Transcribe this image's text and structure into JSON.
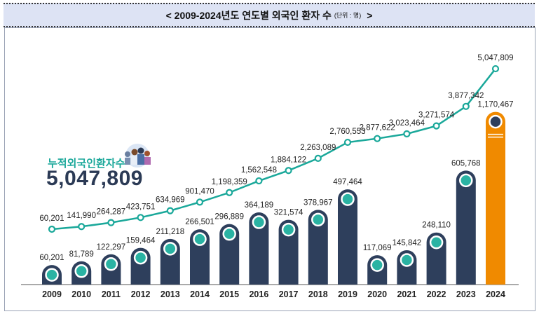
{
  "header": {
    "title": "< 2009-2024년도 연도별 외국인 환자 수",
    "unit": "(단위 : 명)",
    "close": ">"
  },
  "callout": {
    "label": "누적외국인환자수",
    "value": "5,047,809"
  },
  "colors": {
    "bar": "#2e3f5c",
    "bar_highlight": "#f08a00",
    "line": "#1aa89a",
    "dot": "#2ab3a3",
    "header_bg": "#dde3f4"
  },
  "chart_data": {
    "type": "bar+line",
    "categories": [
      "2009",
      "2010",
      "2011",
      "2012",
      "2013",
      "2014",
      "2015",
      "2016",
      "2017",
      "2018",
      "2019",
      "2020",
      "2021",
      "2022",
      "2023",
      "2024"
    ],
    "series": [
      {
        "type": "bar",
        "values": [
          60201,
          81789,
          122297,
          159464,
          211218,
          266501,
          296889,
          364189,
          321574,
          378967,
          497464,
          117069,
          145842,
          248110,
          605768,
          1170467
        ],
        "labels": [
          "60,201",
          "81,789",
          "122,297",
          "159,464",
          "211,218",
          "266,501",
          "296,889",
          "364,189",
          "321,574",
          "378,967",
          "497,464",
          "117,069",
          "145,842",
          "248,110",
          "605,768",
          "1,170,467"
        ]
      },
      {
        "type": "line",
        "values": [
          60201,
          141990,
          264287,
          423751,
          634969,
          901470,
          1198359,
          1562548,
          1884122,
          2263089,
          2760553,
          2877622,
          3023464,
          3271574,
          3877342,
          5047809
        ],
        "labels": [
          "60,201",
          "141,990",
          "264,287",
          "423,751",
          "634,969",
          "901,470",
          "1,198,359",
          "1,562,548",
          "1,884,122",
          "2,263,089",
          "2,760,553",
          "2,877,622",
          "3,023,464",
          "3,271,574",
          "3,877,342",
          "5,047,809"
        ]
      }
    ],
    "highlight_category": "2024",
    "grid": false
  }
}
